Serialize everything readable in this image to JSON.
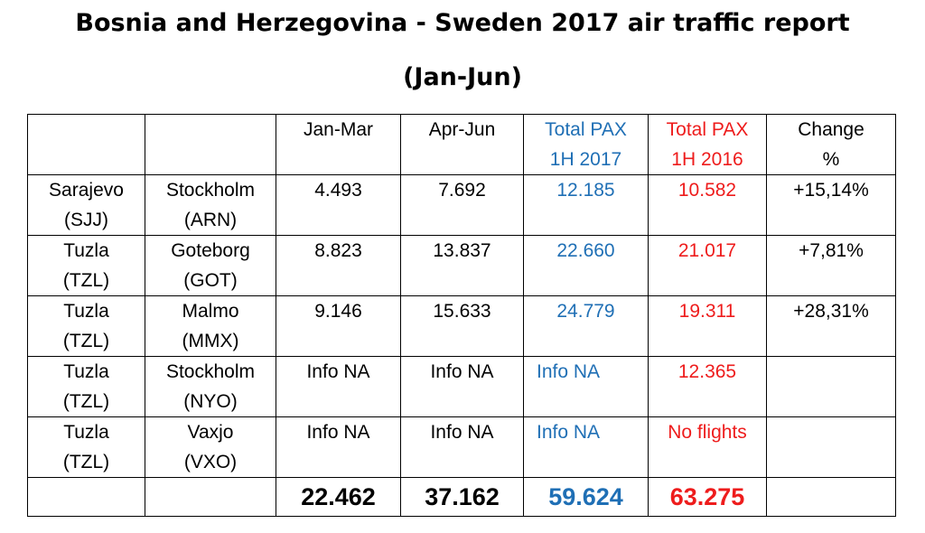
{
  "title": "Bosnia and Herzegovina - Sweden 2017 air traffic report",
  "subtitle": "(Jan-Jun)",
  "colors": {
    "total_2017": "#1f6fb5",
    "total_2016": "#ee1c1c"
  },
  "headers": {
    "jan_mar": "Jan-Mar",
    "apr_jun": "Apr-Jun",
    "total_2017": [
      "Total PAX",
      "1H 2017"
    ],
    "total_2016": [
      "Total PAX",
      "1H 2016"
    ],
    "change": [
      "Change",
      "%"
    ]
  },
  "rows": [
    {
      "from": [
        "Sarajevo",
        "(SJJ)"
      ],
      "to": [
        "Stockholm",
        "(ARN)"
      ],
      "jan_mar": "4.493",
      "apr_jun": "7.692",
      "total_2017": "12.185",
      "total_2016": "10.582",
      "change": "+15,14%"
    },
    {
      "from": [
        "Tuzla",
        "(TZL)"
      ],
      "to": [
        "Goteborg",
        "(GOT)"
      ],
      "jan_mar": "8.823",
      "apr_jun": "13.837",
      "total_2017": "22.660",
      "total_2016": "21.017",
      "change": "+7,81%"
    },
    {
      "from": [
        "Tuzla",
        "(TZL)"
      ],
      "to": [
        "Malmo",
        "(MMX)"
      ],
      "jan_mar": "9.146",
      "apr_jun": "15.633",
      "total_2017": "24.779",
      "total_2016": "19.311",
      "change": "+28,31%"
    },
    {
      "from": [
        "Tuzla",
        "(TZL)"
      ],
      "to": [
        "Stockholm",
        "(NYO)"
      ],
      "jan_mar": "Info NA",
      "apr_jun": "Info NA",
      "total_2017": "Info NA",
      "total_2016": "12.365",
      "change": ""
    },
    {
      "from": [
        "Tuzla",
        "(TZL)"
      ],
      "to": [
        "Vaxjo",
        "(VXO)"
      ],
      "jan_mar": "Info NA",
      "apr_jun": "Info NA",
      "total_2017": "Info NA",
      "total_2016": "No flights",
      "change": ""
    }
  ],
  "totals": {
    "jan_mar": "22.462",
    "apr_jun": "37.162",
    "total_2017": "59.624",
    "total_2016": "63.275"
  }
}
